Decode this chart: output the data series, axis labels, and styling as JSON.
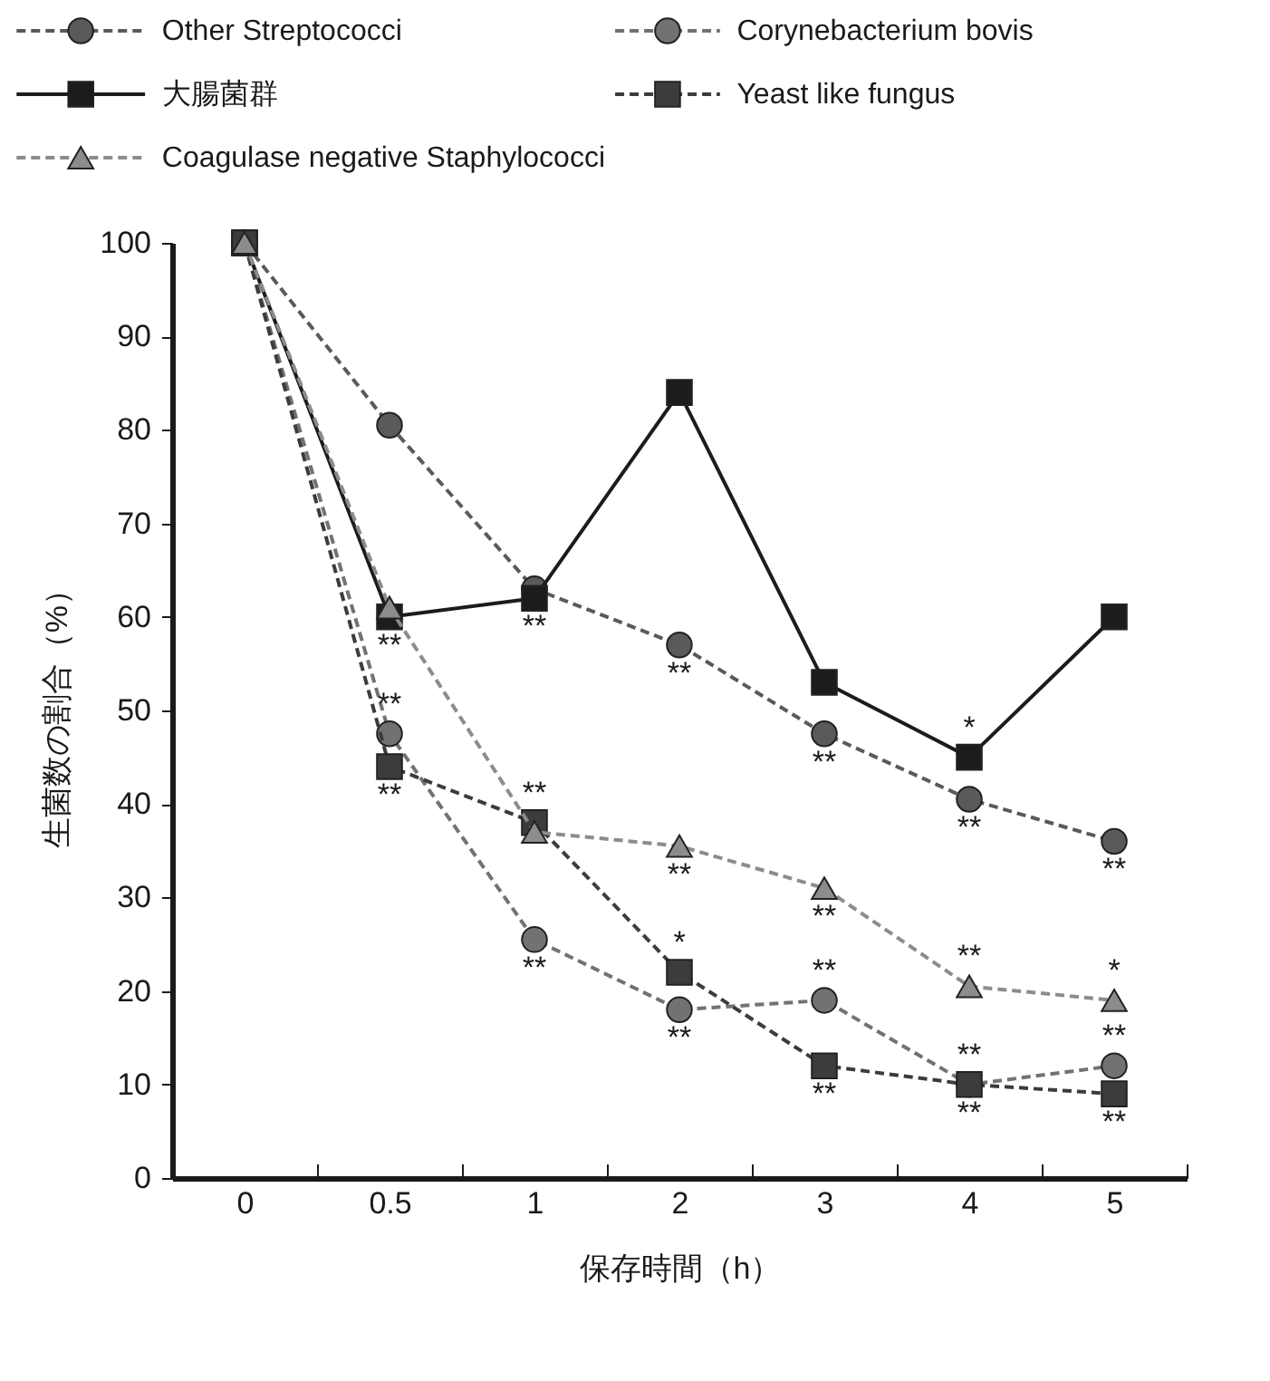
{
  "chart_data": {
    "type": "line",
    "xlabel": "保存時間（h）",
    "ylabel": "生菌数の割合（%）",
    "categories": [
      "0",
      "0.5",
      "1",
      "2",
      "3",
      "4",
      "5"
    ],
    "ylim": [
      0,
      100
    ],
    "yticks": [
      0,
      10,
      20,
      30,
      40,
      50,
      60,
      70,
      80,
      90,
      100
    ],
    "legend": "top",
    "series": [
      {
        "name": "Other Streptococci",
        "color": "#5a5a5a",
        "marker": "circle",
        "line_style": "dashed",
        "values": [
          100,
          80.5,
          63,
          57,
          47.5,
          40.5,
          36
        ]
      },
      {
        "name": "Corynebacterium bovis",
        "color": "#727272",
        "marker": "circle",
        "line_style": "dashed",
        "values": [
          100,
          47.5,
          25.5,
          18,
          19,
          10,
          12
        ]
      },
      {
        "name": "大腸菌群",
        "color": "#1e1b1b",
        "marker": "square",
        "line_style": "solid",
        "values": [
          100,
          60,
          62,
          84,
          53,
          45,
          60
        ]
      },
      {
        "name": "Yeast like fungus",
        "color": "#3c3c3c",
        "marker": "square",
        "line_style": "dashed",
        "values": [
          100,
          44,
          38,
          22,
          12,
          10,
          9
        ]
      },
      {
        "name": "Coagulase negative Staphylococci",
        "color": "#8c8c8c",
        "marker": "triangle",
        "line_style": "dashed",
        "values": [
          100,
          61,
          37,
          35.5,
          31,
          20.5,
          19
        ]
      }
    ],
    "annotations": [
      {
        "text": "**",
        "x": "0.5",
        "y": 60
      },
      {
        "text": "**",
        "x": "0.5",
        "y": 47.5
      },
      {
        "text": "**",
        "x": "0.5",
        "y": 44
      },
      {
        "text": "**",
        "x": "1",
        "y": 62
      },
      {
        "text": "**",
        "x": "1",
        "y": 38
      },
      {
        "text": "**",
        "x": "1",
        "y": 25.5
      },
      {
        "text": "**",
        "x": "2",
        "y": 57
      },
      {
        "text": "**",
        "x": "2",
        "y": 35.5
      },
      {
        "text": "*",
        "x": "2",
        "y": 22
      },
      {
        "text": "**",
        "x": "2",
        "y": 18
      },
      {
        "text": "**",
        "x": "3",
        "y": 47.5
      },
      {
        "text": "**",
        "x": "3",
        "y": 31
      },
      {
        "text": "**",
        "x": "3",
        "y": 19
      },
      {
        "text": "**",
        "x": "3",
        "y": 12
      },
      {
        "text": "*",
        "x": "4",
        "y": 45
      },
      {
        "text": "**",
        "x": "4",
        "y": 40.5
      },
      {
        "text": "**",
        "x": "4",
        "y": 20.5
      },
      {
        "text": "**",
        "x": "4",
        "y": 10
      },
      {
        "text": "**",
        "x": "4",
        "y": 10
      },
      {
        "text": "**",
        "x": "5",
        "y": 36
      },
      {
        "text": "*",
        "x": "5",
        "y": 19
      },
      {
        "text": "**",
        "x": "5",
        "y": 12
      },
      {
        "text": "**",
        "x": "5",
        "y": 9
      }
    ]
  }
}
